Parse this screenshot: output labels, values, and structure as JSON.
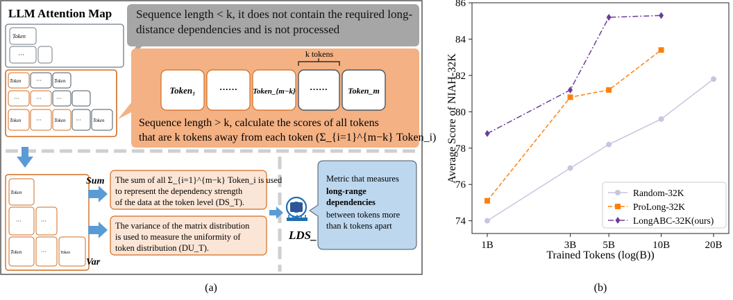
{
  "panel_a": {
    "title": "LLM Attention Map",
    "token_glyph": "Token",
    "dots": "···",
    "short_seq_note": "Sequence length < k, it does not contain the required long-distance dependencies and is not processed",
    "k_tokens_label": "k tokens",
    "seq_tokens": [
      "Token₁",
      "······",
      "Token_{m−k}",
      "······",
      "Token_m"
    ],
    "long_seq_note_line1": "Sequence length > k, calculate the scores of all tokens",
    "long_seq_note_line2": "that are k tokens away from each token (Σ_{i=1}^{m−k} Token_i)",
    "sum_label": "Sum",
    "var_label": "Var",
    "sum_text_line1": "The sum of all Σ_{i=1}^{m−k} Token_i is used",
    "sum_text_line2": "to represent the dependency strength",
    "sum_text_line3": "of the data at the token level (DS_T).",
    "var_text_line1": "The variance of the matrix distribution",
    "var_text_line2": "is used to measure the uniformity of",
    "var_text_line3": "token distribution (DU_T).",
    "lds_label": "LDS_T",
    "metric_line1": "Metric that measures",
    "metric_line2": "long-range",
    "metric_line3": "dependencies",
    "metric_line4": "between tokens more",
    "metric_line5": "than k tokens apart",
    "caption": "(a)"
  },
  "panel_b": {
    "caption": "(b)"
  },
  "colors": {
    "orange_fill": "#f4b183",
    "orange_border": "#d26b1f",
    "pale_orange": "#fbe5d6",
    "gray_box": "#a6a6a6",
    "blue_box": "#bdd7ee",
    "arrow_blue": "#5b9bd5",
    "random": "#c9c4e0",
    "prolong": "#ff7f0e",
    "longabc": "#6a3d9a"
  },
  "chart_data": {
    "type": "line",
    "xlabel": "Trained Tokens (log(B))",
    "ylabel": "Average Score of NIAH-32K",
    "x": [
      1,
      3,
      5,
      10,
      20
    ],
    "xticklabels": [
      "1B",
      "3B",
      "5B",
      "10B",
      "20B"
    ],
    "xscale": "log",
    "ylim": [
      73.3,
      86
    ],
    "yticks": [
      74,
      76,
      78,
      80,
      82,
      84,
      86
    ],
    "grid": false,
    "legend_position": "bottom-right",
    "series": [
      {
        "name": "Random-32K",
        "marker": "circle",
        "style": "solid",
        "color": "#c9c4e0",
        "x": [
          1,
          3,
          5,
          10,
          20
        ],
        "values": [
          74.0,
          76.9,
          78.2,
          79.6,
          81.8
        ]
      },
      {
        "name": "ProLong-32K",
        "marker": "square",
        "style": "dashed",
        "color": "#ff7f0e",
        "x": [
          1,
          3,
          5,
          10
        ],
        "values": [
          75.1,
          80.8,
          81.2,
          83.4
        ]
      },
      {
        "name": "LongABC-32K(ours)",
        "marker": "diamond",
        "style": "dashdot",
        "color": "#6a3d9a",
        "x": [
          1,
          3,
          5,
          10
        ],
        "values": [
          78.8,
          81.2,
          85.2,
          85.3
        ]
      }
    ]
  }
}
